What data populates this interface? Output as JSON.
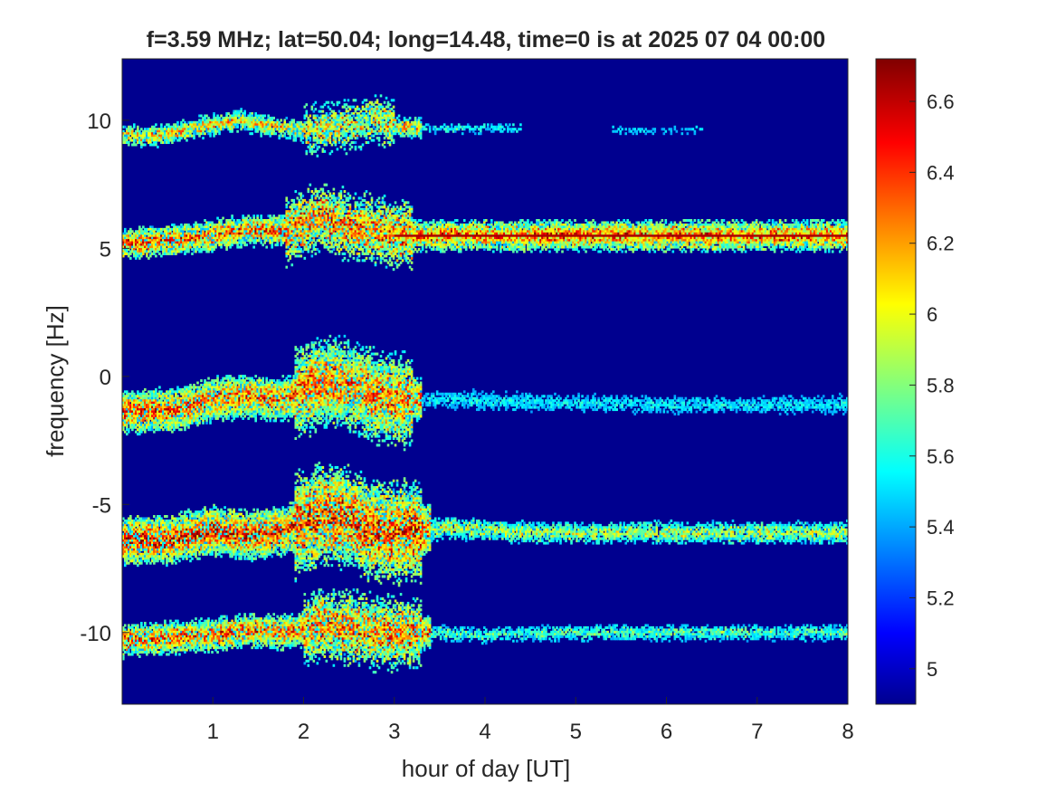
{
  "chart_data": {
    "type": "heatmap",
    "title": "f=3.59 MHz;  lat=50.04; long=14.48, time=0 is at 2025 07 04 00:00",
    "xlabel": "hour of day [UT]",
    "ylabel": "frequency [Hz]",
    "xlim": [
      0,
      8
    ],
    "ylim": [
      -12.8,
      12.4
    ],
    "xticks": [
      "1",
      "2",
      "3",
      "4",
      "5",
      "6",
      "7",
      "8"
    ],
    "xtick_values": [
      1,
      2,
      3,
      4,
      5,
      6,
      7,
      8
    ],
    "yticks": [
      "10",
      "5",
      "0",
      "-5",
      "-10"
    ],
    "ytick_values": [
      10,
      5,
      0,
      -5,
      -10
    ],
    "colorbar": {
      "range": [
        4.9,
        6.72
      ],
      "colormap": "jet",
      "ticks": [
        "6.6",
        "6.4",
        "6.2",
        "6",
        "5.8",
        "5.6",
        "5.4",
        "5.2",
        "5"
      ],
      "tick_values": [
        6.6,
        6.4,
        6.2,
        6.0,
        5.8,
        5.6,
        5.4,
        5.2,
        5.0
      ]
    },
    "background_color": "#00008f",
    "bands": [
      {
        "points": [
          [
            0,
            9.4
          ],
          [
            0.4,
            9.4
          ],
          [
            0.8,
            9.7
          ],
          [
            1.3,
            10.0
          ],
          [
            1.6,
            9.8
          ],
          [
            2.0,
            9.6
          ],
          [
            2.3,
            9.7
          ],
          [
            2.6,
            9.8
          ],
          [
            2.8,
            10.1
          ],
          [
            3.0,
            9.8
          ],
          [
            3.3,
            9.7
          ]
        ],
        "core_width": 0.35,
        "intensity": 0.75,
        "turbulent": [
          2.0,
          3.0
        ],
        "tail": [
          [
            3.3,
            9.7
          ],
          [
            4.4,
            9.8
          ]
        ],
        "tail_intensity": 0.35,
        "extra_tail": [
          [
            5.4,
            9.6
          ],
          [
            6.4,
            9.6
          ]
        ]
      },
      {
        "points": [
          [
            0,
            5.2
          ],
          [
            0.5,
            5.3
          ],
          [
            1.0,
            5.5
          ],
          [
            1.4,
            5.7
          ],
          [
            1.8,
            5.7
          ],
          [
            2.2,
            6.2
          ],
          [
            2.5,
            5.9
          ],
          [
            2.8,
            5.7
          ],
          [
            3.0,
            5.6
          ],
          [
            3.2,
            5.5
          ],
          [
            8,
            5.5
          ]
        ],
        "core_width": 0.55,
        "intensity": 0.92,
        "turbulent": [
          1.8,
          3.2
        ],
        "line_level": 5.5,
        "line_from": 3.0,
        "line_to": 8.0
      },
      {
        "points": [
          [
            0,
            -1.4
          ],
          [
            0.6,
            -1.3
          ],
          [
            1.0,
            -0.9
          ],
          [
            1.4,
            -0.8
          ],
          [
            1.8,
            -0.9
          ],
          [
            2.2,
            -0.2
          ],
          [
            2.5,
            -0.3
          ],
          [
            2.8,
            -0.8
          ],
          [
            3.0,
            -0.9
          ],
          [
            3.5,
            -0.9
          ],
          [
            4.5,
            -1.0
          ],
          [
            6.0,
            -1.1
          ],
          [
            8,
            -1.1
          ]
        ],
        "core_width": 0.8,
        "intensity": 0.9,
        "turbulent": [
          1.9,
          3.2
        ],
        "tail_intensity": 0.3,
        "tail_from": 3.3
      },
      {
        "points": [
          [
            0,
            -6.4
          ],
          [
            0.5,
            -6.4
          ],
          [
            1.0,
            -6.0
          ],
          [
            1.4,
            -6.2
          ],
          [
            1.8,
            -6.0
          ],
          [
            2.2,
            -5.4
          ],
          [
            2.5,
            -5.5
          ],
          [
            2.7,
            -6.0
          ],
          [
            3.0,
            -6.1
          ],
          [
            3.3,
            -6.0
          ],
          [
            3.6,
            -5.9
          ],
          [
            4.5,
            -6.1
          ],
          [
            6.0,
            -6.1
          ],
          [
            8,
            -6.1
          ]
        ],
        "core_width": 0.9,
        "intensity": 1.0,
        "turbulent": [
          1.9,
          3.3
        ],
        "tail_intensity": 0.6,
        "tail_from": 3.4
      },
      {
        "points": [
          [
            0,
            -10.3
          ],
          [
            0.5,
            -10.2
          ],
          [
            1.0,
            -10.1
          ],
          [
            1.4,
            -9.9
          ],
          [
            1.8,
            -10.0
          ],
          [
            2.2,
            -9.7
          ],
          [
            2.5,
            -9.8
          ],
          [
            2.8,
            -10.0
          ],
          [
            3.0,
            -10.0
          ],
          [
            3.4,
            -10.0
          ],
          [
            4.0,
            -10.1
          ],
          [
            5.0,
            -10.0
          ],
          [
            6.0,
            -10.0
          ],
          [
            8,
            -10.0
          ]
        ],
        "core_width": 0.6,
        "intensity": 0.9,
        "turbulent": [
          2.0,
          3.3
        ],
        "tail_intensity": 0.45,
        "tail_from": 3.4
      }
    ]
  }
}
